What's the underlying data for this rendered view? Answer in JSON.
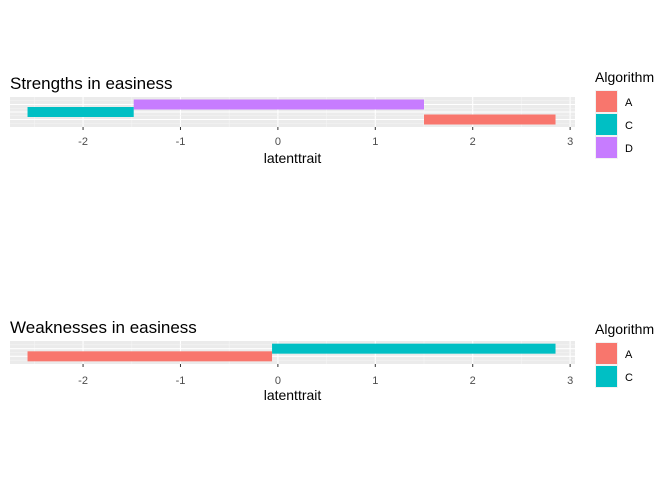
{
  "chart_data": [
    {
      "type": "bar",
      "orientation": "horizontal-segments",
      "title": "Strengths in easiness",
      "xlabel": "latenttrait",
      "xlim": [
        -2.75,
        3.05
      ],
      "xticks": [
        -2,
        -1,
        0,
        1,
        2,
        3
      ],
      "xtick_labels": [
        "-2",
        "-1",
        "0",
        "1",
        "2",
        "3"
      ],
      "legend_title": "Algorithm",
      "legend": [
        {
          "label": "A",
          "color": "#F8766D"
        },
        {
          "label": "C",
          "color": "#00BFC4"
        },
        {
          "label": "D",
          "color": "#C77CFF"
        }
      ],
      "segments": [
        {
          "group": "D",
          "start": -1.48,
          "end": 1.5,
          "level": 3
        },
        {
          "group": "C",
          "start": -2.57,
          "end": -1.48,
          "level": 2
        },
        {
          "group": "A",
          "start": 1.5,
          "end": 2.85,
          "level": 1
        }
      ],
      "levels": 3,
      "grid": true
    },
    {
      "type": "bar",
      "orientation": "horizontal-segments",
      "title": "Weaknesses in easiness",
      "xlabel": "latenttrait",
      "xlim": [
        -2.75,
        3.05
      ],
      "xticks": [
        -2,
        -1,
        0,
        1,
        2,
        3
      ],
      "xtick_labels": [
        "-2",
        "-1",
        "0",
        "1",
        "2",
        "3"
      ],
      "legend_title": "Algorithm",
      "legend": [
        {
          "label": "A",
          "color": "#F8766D"
        },
        {
          "label": "C",
          "color": "#00BFC4"
        }
      ],
      "segments": [
        {
          "group": "C",
          "start": -0.06,
          "end": 2.85,
          "level": 2
        },
        {
          "group": "A",
          "start": -2.57,
          "end": -0.06,
          "level": 1
        }
      ],
      "levels": 2,
      "grid": true
    }
  ]
}
